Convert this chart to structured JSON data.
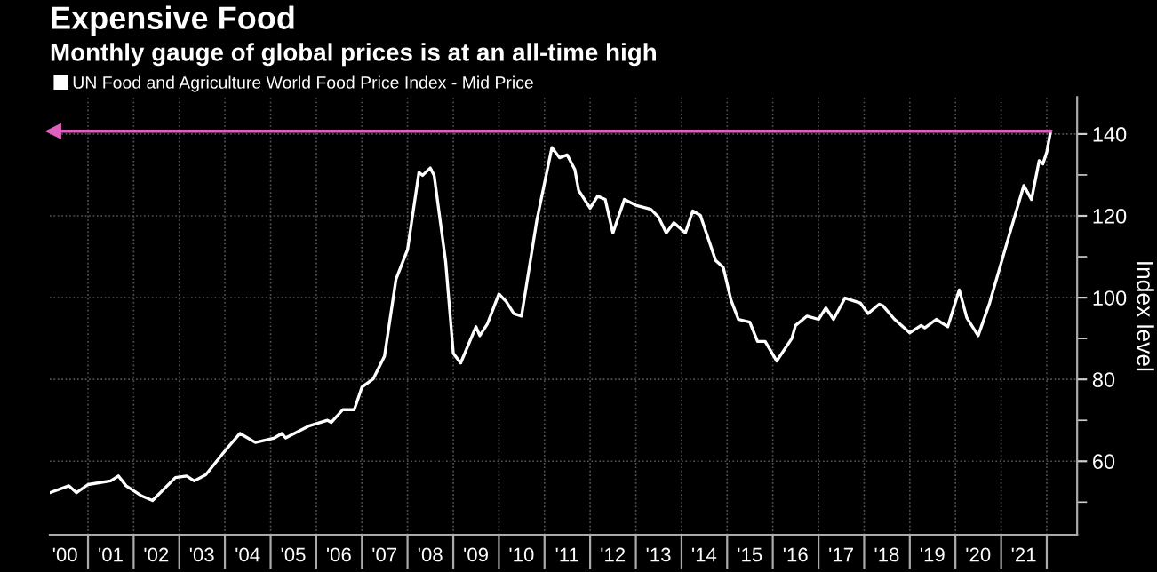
{
  "chart_data": {
    "type": "line",
    "title": "Expensive Food",
    "subtitle": "Monthly gauge of global prices is at an all-time high",
    "ylabel": "Index level",
    "legend": "top left",
    "grid": true,
    "x": [
      "2000-03",
      "2000-08",
      "2000-10",
      "2001-01",
      "2001-07",
      "2001-09",
      "2001-11",
      "2002-03",
      "2002-06",
      "2002-12",
      "2003-03",
      "2003-05",
      "2003-08",
      "2004-01",
      "2004-05",
      "2004-09",
      "2005-02",
      "2005-04",
      "2005-05",
      "2005-11",
      "2006-04",
      "2006-05",
      "2006-08",
      "2006-11",
      "2007-01",
      "2007-04",
      "2007-07",
      "2007-10",
      "2008-01",
      "2008-04",
      "2008-05",
      "2008-07",
      "2008-08",
      "2008-11",
      "2009-01",
      "2009-03",
      "2009-07",
      "2009-08",
      "2009-10",
      "2010-01",
      "2010-03",
      "2010-05",
      "2010-07",
      "2010-11",
      "2011-03",
      "2011-05",
      "2011-07",
      "2011-09",
      "2011-10",
      "2012-01",
      "2012-03",
      "2012-05",
      "2012-07",
      "2012-10",
      "2013-01",
      "2013-05",
      "2013-07",
      "2013-09",
      "2013-11",
      "2014-02",
      "2014-04",
      "2014-06",
      "2014-10",
      "2014-12",
      "2015-02",
      "2015-04",
      "2015-07",
      "2015-09",
      "2015-11",
      "2016-02",
      "2016-06",
      "2016-07",
      "2016-10",
      "2017-01",
      "2017-03",
      "2017-05",
      "2017-08",
      "2017-12",
      "2018-02",
      "2018-05",
      "2018-06",
      "2018-09",
      "2019-01",
      "2019-04",
      "2019-05",
      "2019-08",
      "2019-11",
      "2020-02",
      "2020-04",
      "2020-07",
      "2020-10",
      "2021-03",
      "2021-07",
      "2021-09",
      "2021-11",
      "2021-12",
      "2022-01",
      "2022-02"
    ],
    "series": [
      {
        "name": "UN Food and Agriculture World Food Price Index - Mid Price",
        "color": "#ffffff",
        "values": [
          52.3,
          54.0,
          52.3,
          54.3,
          55.2,
          56.4,
          54.0,
          51.6,
          50.4,
          56.0,
          56.4,
          55.2,
          56.7,
          62.5,
          66.8,
          64.6,
          65.7,
          66.8,
          65.7,
          68.6,
          70.0,
          69.5,
          72.6,
          72.6,
          78.1,
          80.1,
          85.7,
          104.5,
          111.7,
          130.6,
          129.9,
          131.7,
          129.9,
          108.8,
          86.4,
          84.0,
          92.9,
          90.7,
          93.6,
          100.9,
          99.0,
          96.1,
          95.5,
          119.0,
          136.7,
          134.2,
          134.9,
          131.3,
          126.2,
          121.9,
          124.8,
          124.0,
          115.8,
          124.0,
          122.6,
          121.6,
          119.7,
          115.8,
          118.3,
          115.8,
          121.2,
          120.1,
          109.1,
          107.4,
          99.4,
          94.7,
          94.0,
          89.3,
          89.3,
          84.5,
          90.0,
          93.2,
          95.5,
          94.7,
          97.5,
          94.7,
          99.9,
          98.7,
          96.1,
          98.4,
          98.0,
          94.7,
          91.4,
          93.2,
          92.6,
          94.7,
          92.9,
          101.9,
          95.1,
          90.7,
          98.7,
          114.7,
          127.4,
          124.0,
          133.5,
          132.7,
          135.6,
          140.7
        ]
      }
    ],
    "ref_lines": [
      {
        "axis": "y",
        "value": 140.7,
        "color": "#e060c0"
      }
    ],
    "xlim": [
      "2000-03",
      "2022-09"
    ],
    "xticks": [
      {
        "value": "2000-07",
        "label": "'00"
      },
      {
        "value": "2001-01",
        "label": null
      },
      {
        "value": "2001-07",
        "label": "'01"
      },
      {
        "value": "2002-01",
        "label": null
      },
      {
        "value": "2002-07",
        "label": "'02"
      },
      {
        "value": "2003-01",
        "label": null
      },
      {
        "value": "2003-07",
        "label": "'03"
      },
      {
        "value": "2004-01",
        "label": null
      },
      {
        "value": "2004-07",
        "label": "'04"
      },
      {
        "value": "2005-01",
        "label": null
      },
      {
        "value": "2005-07",
        "label": "'05"
      },
      {
        "value": "2006-01",
        "label": null
      },
      {
        "value": "2006-07",
        "label": "'06"
      },
      {
        "value": "2007-01",
        "label": null
      },
      {
        "value": "2007-07",
        "label": "'07"
      },
      {
        "value": "2008-01",
        "label": null
      },
      {
        "value": "2008-07",
        "label": "'08"
      },
      {
        "value": "2009-01",
        "label": null
      },
      {
        "value": "2009-07",
        "label": "'09"
      },
      {
        "value": "2010-01",
        "label": null
      },
      {
        "value": "2010-07",
        "label": "'10"
      },
      {
        "value": "2011-01",
        "label": null
      },
      {
        "value": "2011-07",
        "label": "'11"
      },
      {
        "value": "2012-01",
        "label": null
      },
      {
        "value": "2012-07",
        "label": "'12"
      },
      {
        "value": "2013-01",
        "label": null
      },
      {
        "value": "2013-07",
        "label": "'13"
      },
      {
        "value": "2014-01",
        "label": null
      },
      {
        "value": "2014-07",
        "label": "'14"
      },
      {
        "value": "2015-01",
        "label": null
      },
      {
        "value": "2015-07",
        "label": "'15"
      },
      {
        "value": "2016-01",
        "label": null
      },
      {
        "value": "2016-07",
        "label": "'16"
      },
      {
        "value": "2017-01",
        "label": null
      },
      {
        "value": "2017-07",
        "label": "'17"
      },
      {
        "value": "2018-01",
        "label": null
      },
      {
        "value": "2018-07",
        "label": "'18"
      },
      {
        "value": "2019-01",
        "label": null
      },
      {
        "value": "2019-07",
        "label": "'19"
      },
      {
        "value": "2020-01",
        "label": null
      },
      {
        "value": "2020-07",
        "label": "'20"
      },
      {
        "value": "2021-01",
        "label": null
      },
      {
        "value": "2021-07",
        "label": "'21"
      },
      {
        "value": "2022-01",
        "label": null
      }
    ],
    "ylim": [
      42,
      149
    ],
    "yticks": [
      {
        "value": 50,
        "label": null
      },
      60,
      {
        "value": 70,
        "label": null
      },
      80,
      {
        "value": 90,
        "label": null
      },
      100,
      {
        "value": 110,
        "label": null
      },
      120,
      {
        "value": 130,
        "label": null
      },
      140
    ]
  }
}
